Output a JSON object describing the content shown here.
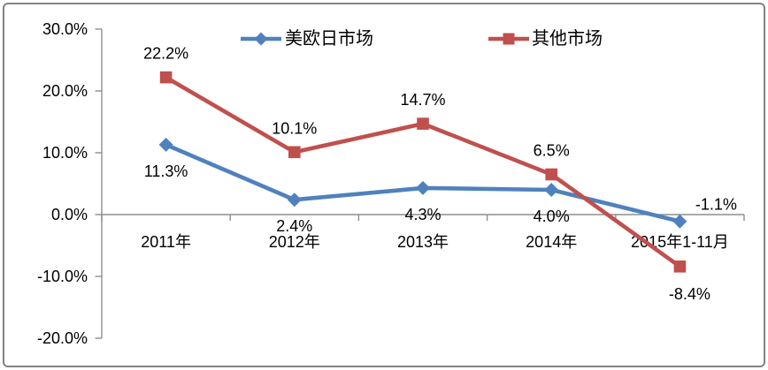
{
  "chart_data": {
    "type": "line",
    "title": "",
    "categories": [
      "2011年",
      "2012年",
      "2013年",
      "2014年",
      "2015年1-11月"
    ],
    "series": [
      {
        "name": "美欧日市场",
        "color": "#4F81BD",
        "marker": "diamond",
        "values": [
          11.3,
          2.4,
          4.3,
          4.0,
          -1.1
        ],
        "labels": [
          "11.3%",
          "2.4%",
          "4.3%",
          "4.0%",
          "-1.1%"
        ],
        "label_pos": [
          "below",
          "below",
          "below",
          "below",
          "right-above"
        ]
      },
      {
        "name": "其他市场",
        "color": "#C0504D",
        "marker": "square",
        "values": [
          22.2,
          10.1,
          14.7,
          6.5,
          -8.4
        ],
        "labels": [
          "22.2%",
          "10.1%",
          "14.7%",
          "6.5%",
          "-8.4%"
        ],
        "label_pos": [
          "above",
          "above",
          "above",
          "above",
          "below-right"
        ]
      }
    ],
    "y_axis": {
      "min": -20,
      "max": 30,
      "tick_step": 10,
      "ticks": [
        {
          "value": 30,
          "label": "30.0%"
        },
        {
          "value": 20,
          "label": "20.0%"
        },
        {
          "value": 10,
          "label": "10.0%"
        },
        {
          "value": 0,
          "label": "0.0%"
        },
        {
          "value": -10,
          "label": "-10.0%"
        },
        {
          "value": -20,
          "label": "-20.0%"
        }
      ]
    },
    "xlabel": "",
    "ylabel": "",
    "grid": false,
    "legend_position": "top",
    "axis_color": "#8E8E8E",
    "text_color": "#000000",
    "background_color": "#FFFFFF",
    "border_color": "#828282"
  }
}
